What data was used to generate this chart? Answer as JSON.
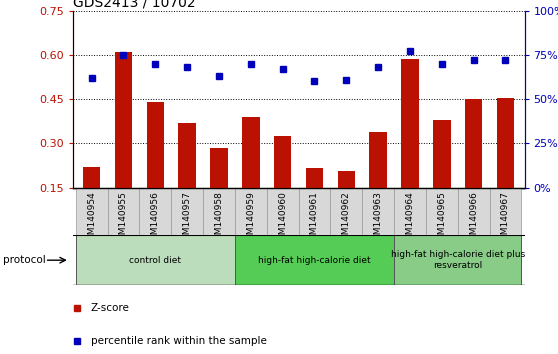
{
  "title": "GDS2413 / 10702",
  "samples": [
    "GSM140954",
    "GSM140955",
    "GSM140956",
    "GSM140957",
    "GSM140958",
    "GSM140959",
    "GSM140960",
    "GSM140961",
    "GSM140962",
    "GSM140963",
    "GSM140964",
    "GSM140965",
    "GSM140966",
    "GSM140967"
  ],
  "zscore": [
    0.22,
    0.61,
    0.44,
    0.37,
    0.285,
    0.39,
    0.325,
    0.215,
    0.205,
    0.34,
    0.585,
    0.38,
    0.45,
    0.455
  ],
  "percentile": [
    62,
    75,
    70,
    68,
    63,
    70,
    67,
    60,
    61,
    68,
    77,
    70,
    72,
    72
  ],
  "ylim_left": [
    0.15,
    0.75
  ],
  "ylim_right": [
    0,
    100
  ],
  "yticks_left": [
    0.15,
    0.3,
    0.45,
    0.6,
    0.75
  ],
  "ytick_labels_left": [
    "0.15",
    "0.30",
    "0.45",
    "0.60",
    "0.75"
  ],
  "yticks_right": [
    0,
    25,
    50,
    75,
    100
  ],
  "ytick_labels_right": [
    "0%",
    "25%",
    "50%",
    "75%",
    "100%"
  ],
  "bar_color": "#bb1100",
  "dot_color": "#0000bb",
  "bg_color": "#d8d8d8",
  "groups": [
    {
      "label": "control diet",
      "start": 0,
      "end": 4,
      "color": "#bbddbb"
    },
    {
      "label": "high-fat high-calorie diet",
      "start": 5,
      "end": 9,
      "color": "#55cc55"
    },
    {
      "label": "high-fat high-calorie diet plus\nresveratrol",
      "start": 10,
      "end": 13,
      "color": "#88cc88"
    }
  ],
  "protocol_label": "protocol",
  "legend_zscore": "Z-score",
  "legend_percentile": "percentile rank within the sample"
}
